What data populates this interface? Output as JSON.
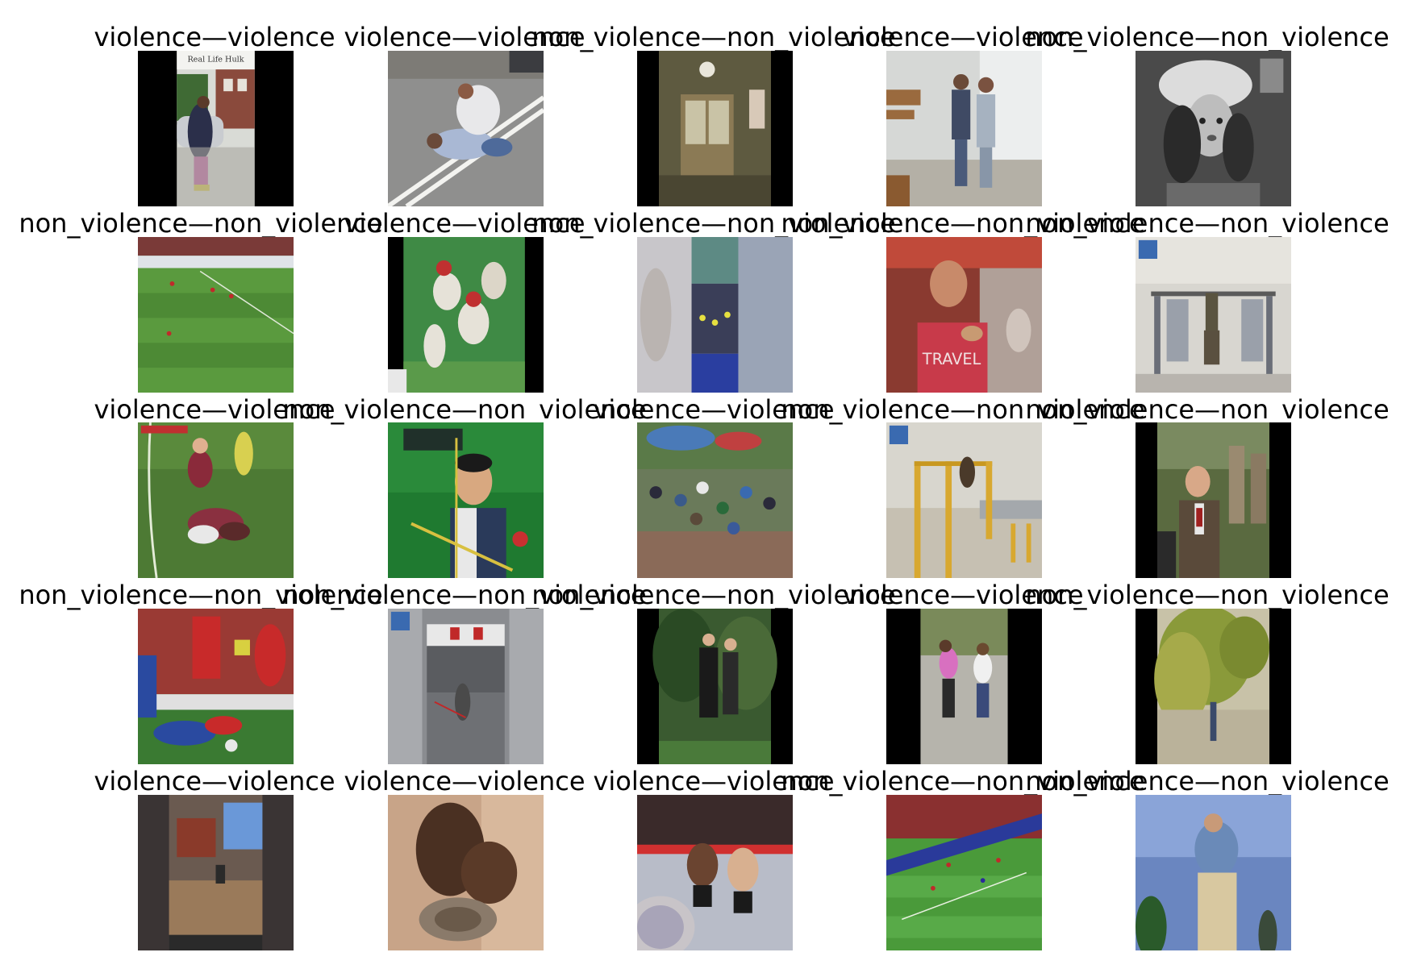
{
  "grid": {
    "rows": [
      [
        {
          "title": "violence—violence",
          "image": "portrait video frame of a man pressing a car, caption 'Real Life Hulk', black side bars",
          "caption": "Real Life Hulk"
        },
        {
          "title": "violence—violence",
          "image": "man restraining another man on a wet road"
        },
        {
          "title": "non_violence—non_violence",
          "image": "hallway double doors with a wall clock, black side bars"
        },
        {
          "title": "violence—violence",
          "image": "two men scuffling near a white wall and wooden bench"
        },
        {
          "title": "non_violence—non_violence",
          "image": "black and white portrait of a woman in a feathered hat"
        }
      ],
      [
        {
          "title": "non_violence—non_violence",
          "image": "football match on a green pitch"
        },
        {
          "title": "violence—violence",
          "image": "baseball players in a brawl on green field, black side bars"
        },
        {
          "title": "non_violence—non_violence",
          "image": "blurred crowd in an arena, vertical video frame"
        },
        {
          "title": "non_violence—non_violence",
          "image": "man in red t-shirt eating in a busy restaurant"
        },
        {
          "title": "non_violence—non_violence",
          "image": "person doing pull-ups in a gym"
        }
      ],
      [
        {
          "title": "violence—violence",
          "image": "rugby players tackling on grass"
        },
        {
          "title": "non_violence—non_violence",
          "image": "archer aiming on green background with scoreboard"
        },
        {
          "title": "violence—violence",
          "image": "crowd fighting outdoors under blue umbrellas"
        },
        {
          "title": "non_violence—non_violence",
          "image": "man on outdoor pull-up bars in a yard"
        },
        {
          "title": "non_violence—non_violence",
          "image": "man in suit by stone statues, black side bars"
        }
      ],
      [
        {
          "title": "non_violence—non_violence",
          "image": "football players colliding near the goal"
        },
        {
          "title": "non_violence—non_violence",
          "image": "gym interior with a person training, vertical video"
        },
        {
          "title": "non_violence—non_violence",
          "image": "man in suit standing in a park, black side bars"
        },
        {
          "title": "violence—violence",
          "image": "two girls fighting on a path, black side bars"
        },
        {
          "title": "non_violence—non_violence",
          "image": "person walking under a willow tree"
        }
      ],
      [
        {
          "title": "violence—violence",
          "image": "street scene vertical phone video"
        },
        {
          "title": "violence—violence",
          "image": "blurred close-up of a physical struggle"
        },
        {
          "title": "violence—violence",
          "image": "two fighters in a UFC octagon"
        },
        {
          "title": "non_violence—non_violence",
          "image": "football match in a stadium"
        },
        {
          "title": "non_violence—non_violence",
          "image": "old man standing against a blue sky"
        }
      ]
    ]
  }
}
